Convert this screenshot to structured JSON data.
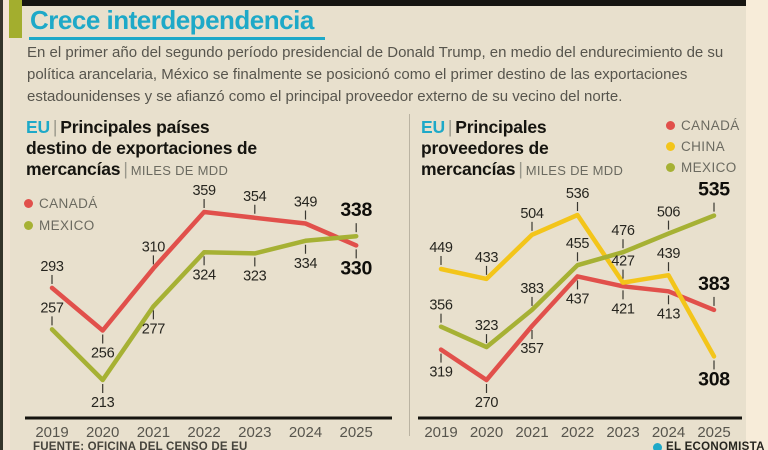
{
  "page": {
    "title": "Crece interdependencia",
    "intro": "En el primer año del segundo período presidencial de Donald Trump, en medio del endurecimiento de su política arancelaria, México se finalmente se posicionó como el primer destino de las exportaciones estadounidenses y se afianzó como el principal proveedor externo de su vecino del norte.",
    "source": "FUENTE: OFICINA DEL CENSO DE EU",
    "brand": "EL ECONOMISTA"
  },
  "colors": {
    "background": "#e8e0cd",
    "accent_teal": "#1ea9c8",
    "accent_olive": "#a3ae2e",
    "canada_red": "#e1504b",
    "china_yellow": "#f3c51a",
    "mexico_olive": "#a6b134",
    "text_dark": "#15140f",
    "text_gray": "#57554d"
  },
  "chart_data": [
    {
      "type": "line",
      "title_prefix": "EU",
      "title": "Principales países destino de exportaciones de mercancías",
      "title_lines": [
        "Principales países",
        "destino de exportaciones de",
        "mercancías"
      ],
      "unit": "MILES DE MDD",
      "categories": [
        "2019",
        "2020",
        "2021",
        "2022",
        "2023",
        "2024",
        "2025"
      ],
      "series": [
        {
          "name": "CANADÁ",
          "color": "#e1504b",
          "values": [
            293,
            256,
            310,
            359,
            354,
            349,
            330
          ],
          "label_side": [
            "above",
            "below",
            "above",
            "above",
            "above",
            "above",
            "below"
          ]
        },
        {
          "name": "MEXICO",
          "color": "#a6b134",
          "values": [
            257,
            213,
            277,
            324,
            323,
            334,
            338
          ],
          "label_side": [
            "above",
            "below",
            "below",
            "below",
            "below",
            "below",
            "above"
          ]
        }
      ],
      "ylim": [
        213,
        359
      ],
      "grid": false,
      "legend_position": "upper-left"
    },
    {
      "type": "line",
      "title_prefix": "EU",
      "title": "Principales proveedores de mercancías",
      "title_lines": [
        "Principales",
        "proveedores de",
        "mercancías"
      ],
      "unit": "MILES DE MDD",
      "categories": [
        "2019",
        "2020",
        "2021",
        "2022",
        "2023",
        "2024",
        "2025"
      ],
      "series": [
        {
          "name": "CANADÁ",
          "color": "#e1504b",
          "values": [
            319,
            270,
            357,
            437,
            421,
            413,
            383
          ],
          "label_side": [
            "below",
            "below",
            "below",
            "below",
            "below",
            "below",
            "above"
          ]
        },
        {
          "name": "CHINA",
          "color": "#f3c51a",
          "values": [
            449,
            433,
            504,
            536,
            427,
            439,
            308
          ],
          "label_side": [
            "above",
            "above",
            "above",
            "above",
            "above",
            "above",
            "below"
          ]
        },
        {
          "name": "MEXICO",
          "color": "#a6b134",
          "values": [
            356,
            323,
            383,
            455,
            476,
            506,
            535
          ],
          "label_side": [
            "above",
            "above",
            "above",
            "above",
            "above",
            "above",
            "above"
          ]
        }
      ],
      "ylim": [
        270,
        536
      ],
      "grid": false,
      "legend_position": "upper-right"
    }
  ]
}
